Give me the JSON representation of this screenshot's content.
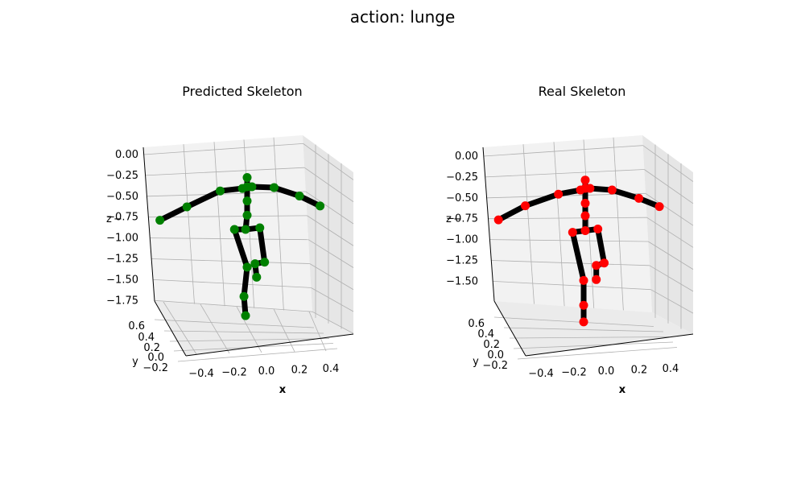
{
  "figure": {
    "title": "action: lunge"
  },
  "chart_data": [
    {
      "type": "scatter",
      "title": "Predicted Skeleton",
      "xlabel": "x",
      "ylabel": "y",
      "zlabel": "z",
      "marker_color": "#008000",
      "bone_color": "#000000",
      "x_ticks": [
        "−0.4",
        "−0.2",
        "0.0",
        "0.2",
        "0.4"
      ],
      "y_ticks": [
        "−0.2",
        "0.0",
        "0.2",
        "0.4",
        "0.6"
      ],
      "z_ticks": [
        "0.00",
        "−0.25",
        "−0.50",
        "−0.75",
        "−1.00",
        "−1.25",
        "−1.50",
        "−1.75"
      ],
      "xlim": [
        -0.5,
        0.55
      ],
      "ylim": [
        -0.3,
        0.7
      ],
      "zlim": [
        -1.8,
        0.05
      ],
      "grid": true,
      "points": [
        {
          "x": -0.55,
          "y": 0.0,
          "z": -0.82
        },
        {
          "x": -0.38,
          "y": 0.0,
          "z": -0.66
        },
        {
          "x": -0.17,
          "y": 0.0,
          "z": -0.47
        },
        {
          "x": -0.03,
          "y": 0.0,
          "z": -0.44
        },
        {
          "x": 0.0,
          "y": 0.0,
          "z": -0.42
        },
        {
          "x": 0.03,
          "y": 0.0,
          "z": -0.42
        },
        {
          "x": 0.17,
          "y": 0.0,
          "z": -0.43
        },
        {
          "x": 0.33,
          "y": 0.0,
          "z": -0.53
        },
        {
          "x": 0.46,
          "y": 0.0,
          "z": -0.65
        },
        {
          "x": 0.0,
          "y": 0.0,
          "z": -0.31
        },
        {
          "x": 0.0,
          "y": 0.0,
          "z": -0.59
        },
        {
          "x": 0.0,
          "y": 0.0,
          "z": -0.76
        },
        {
          "x": -0.08,
          "y": 0.0,
          "z": -0.93
        },
        {
          "x": -0.01,
          "y": 0.0,
          "z": -0.93
        },
        {
          "x": 0.08,
          "y": 0.0,
          "z": -0.91
        },
        {
          "x": 0.11,
          "y": 0.0,
          "z": -1.32
        },
        {
          "x": 0.05,
          "y": 0.0,
          "z": -1.34
        },
        {
          "x": 0.0,
          "y": 0.0,
          "z": -1.38
        },
        {
          "x": 0.06,
          "y": 0.0,
          "z": -1.5
        },
        {
          "x": -0.02,
          "y": 0.0,
          "z": -1.73
        },
        {
          "x": -0.01,
          "y": 0.0,
          "z": -1.96
        }
      ],
      "bones": [
        [
          0,
          1
        ],
        [
          1,
          2
        ],
        [
          2,
          3
        ],
        [
          3,
          4
        ],
        [
          4,
          5
        ],
        [
          5,
          6
        ],
        [
          6,
          7
        ],
        [
          7,
          8
        ],
        [
          4,
          9
        ],
        [
          4,
          10
        ],
        [
          10,
          11
        ],
        [
          11,
          13
        ],
        [
          12,
          13
        ],
        [
          13,
          14
        ],
        [
          14,
          15
        ],
        [
          15,
          16
        ],
        [
          16,
          18
        ],
        [
          12,
          17
        ],
        [
          17,
          19
        ],
        [
          19,
          20
        ]
      ]
    },
    {
      "type": "scatter",
      "title": "Real Skeleton",
      "xlabel": "x",
      "ylabel": "y",
      "zlabel": "z",
      "marker_color": "#ff0000",
      "bone_color": "#000000",
      "x_ticks": [
        "−0.4",
        "−0.2",
        "0.0",
        "0.2",
        "0.4"
      ],
      "y_ticks": [
        "−0.2",
        "0.0",
        "0.2",
        "0.4",
        "0.6"
      ],
      "z_ticks": [
        "0.00",
        "−0.25",
        "−0.50",
        "−0.75",
        "−1.00",
        "−1.25",
        "−1.50"
      ],
      "xlim": [
        -0.5,
        0.55
      ],
      "ylim": [
        -0.3,
        0.7
      ],
      "zlim": [
        -1.75,
        0.05
      ],
      "grid": true,
      "points": [
        {
          "x": -0.55,
          "y": 0.0,
          "z": -0.78
        },
        {
          "x": -0.38,
          "y": 0.0,
          "z": -0.61
        },
        {
          "x": -0.17,
          "y": 0.0,
          "z": -0.47
        },
        {
          "x": -0.03,
          "y": 0.0,
          "z": -0.42
        },
        {
          "x": 0.0,
          "y": 0.0,
          "z": -0.4
        },
        {
          "x": 0.03,
          "y": 0.0,
          "z": -0.4
        },
        {
          "x": 0.17,
          "y": 0.0,
          "z": -0.42
        },
        {
          "x": 0.34,
          "y": 0.0,
          "z": -0.52
        },
        {
          "x": 0.47,
          "y": 0.0,
          "z": -0.62
        },
        {
          "x": 0.0,
          "y": 0.0,
          "z": -0.3
        },
        {
          "x": 0.0,
          "y": 0.0,
          "z": -0.58
        },
        {
          "x": 0.0,
          "y": 0.0,
          "z": -0.73
        },
        {
          "x": -0.08,
          "y": 0.0,
          "z": -0.93
        },
        {
          "x": 0.0,
          "y": 0.0,
          "z": -0.91
        },
        {
          "x": 0.08,
          "y": 0.0,
          "z": -0.89
        },
        {
          "x": 0.12,
          "y": 0.0,
          "z": -1.3
        },
        {
          "x": 0.07,
          "y": 0.0,
          "z": -1.33
        },
        {
          "x": 0.07,
          "y": 0.0,
          "z": -1.5
        },
        {
          "x": -0.01,
          "y": 0.0,
          "z": -1.51
        },
        {
          "x": -0.01,
          "y": 0.0,
          "z": -1.81
        },
        {
          "x": -0.01,
          "y": 0.0,
          "z": -2.01
        }
      ],
      "bones": [
        [
          0,
          1
        ],
        [
          1,
          2
        ],
        [
          2,
          3
        ],
        [
          3,
          4
        ],
        [
          4,
          5
        ],
        [
          5,
          6
        ],
        [
          6,
          7
        ],
        [
          7,
          8
        ],
        [
          4,
          9
        ],
        [
          4,
          10
        ],
        [
          10,
          11
        ],
        [
          11,
          13
        ],
        [
          12,
          13
        ],
        [
          13,
          14
        ],
        [
          14,
          15
        ],
        [
          15,
          16
        ],
        [
          16,
          17
        ],
        [
          12,
          18
        ],
        [
          18,
          19
        ],
        [
          19,
          20
        ]
      ]
    }
  ]
}
